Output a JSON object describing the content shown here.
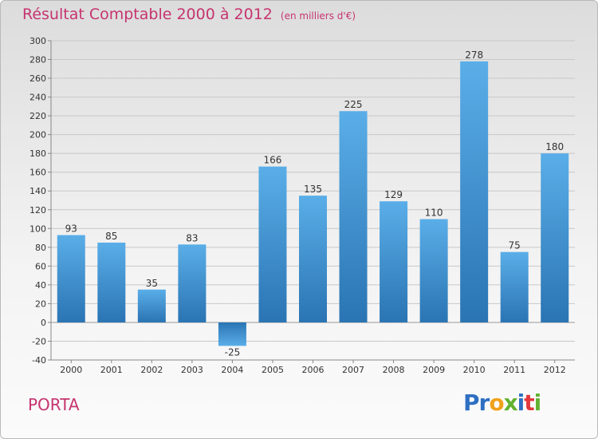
{
  "header": {
    "title": "Résultat Comptable 2000 à 2012",
    "unit": "(en milliers d'€)"
  },
  "footer": {
    "commune": "PORTA",
    "logo": "Proxiti",
    "logo_colors": [
      "#2e6fc2",
      "#2e6fc2",
      "#f0a11c",
      "#62b130",
      "#2e6fc2",
      "#e2383c",
      "#62b130"
    ]
  },
  "chart_data": {
    "type": "bar",
    "title": "Résultat Comptable 2000 à 2012",
    "subtitle": "(en milliers d'€)",
    "xlabel": "",
    "ylabel": "",
    "categories": [
      "2000",
      "2001",
      "2002",
      "2003",
      "2004",
      "2005",
      "2006",
      "2007",
      "2008",
      "2009",
      "2010",
      "2011",
      "2012"
    ],
    "values": [
      93,
      85,
      35,
      83,
      -25,
      166,
      135,
      225,
      129,
      110,
      278,
      75,
      180
    ],
    "labels": [
      "93",
      "85",
      "35",
      "83",
      "-25",
      "166",
      "135",
      "225",
      "129",
      "110",
      "278",
      "75",
      "180"
    ],
    "ylim": [
      -40,
      300
    ],
    "yticks": [
      -40,
      -20,
      0,
      20,
      40,
      60,
      80,
      100,
      120,
      140,
      160,
      180,
      200,
      220,
      240,
      260,
      280,
      300
    ],
    "grid": true,
    "bar_color_top": "#5aaee8",
    "bar_color_bottom": "#2a74b3",
    "axis_color": "#888888",
    "grid_color": "#c8c8c8"
  }
}
